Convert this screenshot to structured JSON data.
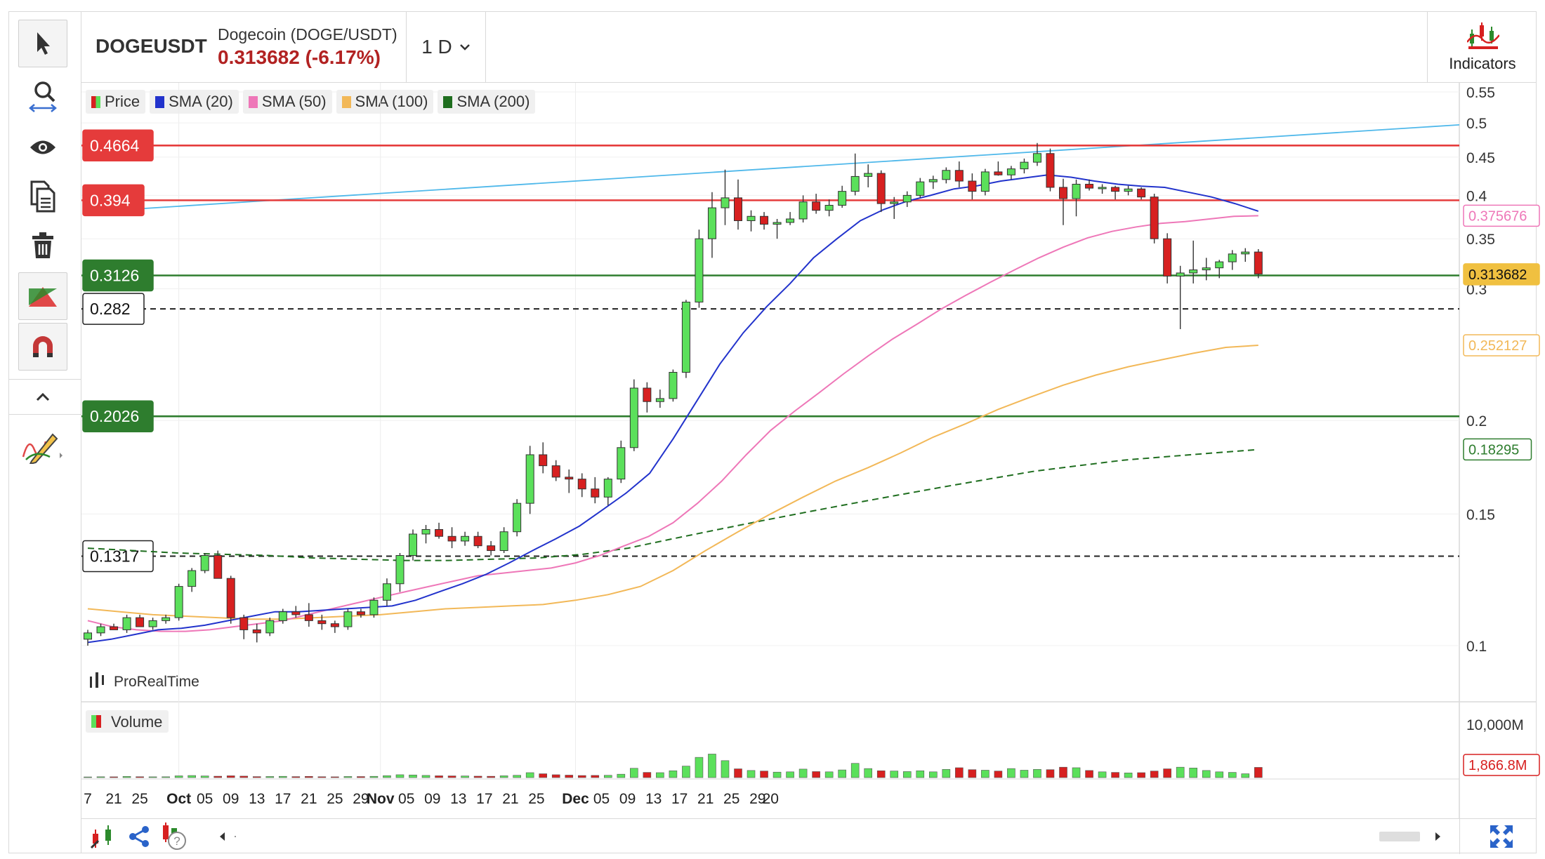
{
  "header": {
    "symbol": "DOGEUSDT",
    "instrument_name": "Dogecoin (DOGE/USDT)",
    "last_price": "0.313682 (-6.17%)",
    "timeframe": "1 D",
    "indicators_label": "Indicators"
  },
  "legend": [
    {
      "label": "Price",
      "color": "#2eaa2e"
    },
    {
      "label": "SMA (20)",
      "color": "#2233cc"
    },
    {
      "label": "SMA (50)",
      "color": "#ee77b8"
    },
    {
      "label": "SMA (100)",
      "color": "#f2b858"
    },
    {
      "label": "SMA (200)",
      "color": "#1f6e1f"
    }
  ],
  "volume_legend": "Volume",
  "watermark": "ProRealTime",
  "colors": {
    "up": "#5be05b",
    "down": "#d72020",
    "blue_trendline": "#4fb8ea"
  },
  "chart_data": {
    "type": "candlestick",
    "scale": "log",
    "price_axis_ticks": [
      "0.55",
      "0.5",
      "0.45",
      "0.4",
      "0.35",
      "0.3",
      "0.2",
      "0.15",
      "0.1"
    ],
    "volume_axis_ticks": [
      "10,000M"
    ],
    "x_tick_labels": [
      {
        "label": "7",
        "idx": 0
      },
      {
        "label": "21",
        "idx": 2
      },
      {
        "label": "25",
        "idx": 4
      },
      {
        "label": "Oct",
        "idx": 7,
        "bold": true
      },
      {
        "label": "05",
        "idx": 9
      },
      {
        "label": "09",
        "idx": 11
      },
      {
        "label": "13",
        "idx": 13
      },
      {
        "label": "17",
        "idx": 15
      },
      {
        "label": "21",
        "idx": 17
      },
      {
        "label": "25",
        "idx": 19
      },
      {
        "label": "29",
        "idx": 21
      },
      {
        "label": "Nov",
        "idx": 22.5,
        "bold": true
      },
      {
        "label": "05",
        "idx": 24.5
      },
      {
        "label": "09",
        "idx": 26.5
      },
      {
        "label": "13",
        "idx": 28.5
      },
      {
        "label": "17",
        "idx": 30.5
      },
      {
        "label": "21",
        "idx": 32.5
      },
      {
        "label": "25",
        "idx": 34.5
      },
      {
        "label": "Dec",
        "idx": 37.5,
        "bold": true
      },
      {
        "label": "05",
        "idx": 39.5
      },
      {
        "label": "09",
        "idx": 41.5
      },
      {
        "label": "13",
        "idx": 43.5
      },
      {
        "label": "17",
        "idx": 45.5
      },
      {
        "label": "21",
        "idx": 47.5
      },
      {
        "label": "25",
        "idx": 49.5
      },
      {
        "label": "29",
        "idx": 51.5
      },
      {
        "label": "20",
        "idx": 52.5
      }
    ],
    "candles": [
      [
        0.102,
        0.105,
        0.1,
        0.104
      ],
      [
        0.104,
        0.107,
        0.103,
        0.106
      ],
      [
        0.106,
        0.107,
        0.105,
        0.105
      ],
      [
        0.105,
        0.11,
        0.104,
        0.109
      ],
      [
        0.109,
        0.11,
        0.106,
        0.106
      ],
      [
        0.106,
        0.109,
        0.105,
        0.108
      ],
      [
        0.108,
        0.11,
        0.107,
        0.109
      ],
      [
        0.109,
        0.121,
        0.108,
        0.12
      ],
      [
        0.12,
        0.127,
        0.118,
        0.126
      ],
      [
        0.126,
        0.133,
        0.125,
        0.132
      ],
      [
        0.132,
        0.134,
        0.123,
        0.123
      ],
      [
        0.123,
        0.124,
        0.107,
        0.109
      ],
      [
        0.109,
        0.11,
        0.102,
        0.105
      ],
      [
        0.105,
        0.107,
        0.101,
        0.104
      ],
      [
        0.104,
        0.109,
        0.103,
        0.108
      ],
      [
        0.108,
        0.112,
        0.107,
        0.111
      ],
      [
        0.111,
        0.113,
        0.109,
        0.11
      ],
      [
        0.11,
        0.114,
        0.106,
        0.108
      ],
      [
        0.108,
        0.11,
        0.105,
        0.107
      ],
      [
        0.107,
        0.108,
        0.104,
        0.106
      ],
      [
        0.106,
        0.112,
        0.105,
        0.111
      ],
      [
        0.111,
        0.112,
        0.109,
        0.11
      ],
      [
        0.11,
        0.116,
        0.109,
        0.115
      ],
      [
        0.115,
        0.123,
        0.113,
        0.121
      ],
      [
        0.121,
        0.133,
        0.118,
        0.132
      ],
      [
        0.132,
        0.143,
        0.13,
        0.141
      ],
      [
        0.141,
        0.145,
        0.137,
        0.143
      ],
      [
        0.143,
        0.146,
        0.139,
        0.14
      ],
      [
        0.14,
        0.144,
        0.135,
        0.138
      ],
      [
        0.138,
        0.142,
        0.136,
        0.14
      ],
      [
        0.14,
        0.142,
        0.135,
        0.136
      ],
      [
        0.136,
        0.138,
        0.132,
        0.134
      ],
      [
        0.134,
        0.144,
        0.133,
        0.142
      ],
      [
        0.142,
        0.157,
        0.14,
        0.155
      ],
      [
        0.155,
        0.185,
        0.15,
        0.18
      ],
      [
        0.18,
        0.187,
        0.17,
        0.174
      ],
      [
        0.174,
        0.177,
        0.166,
        0.168
      ],
      [
        0.168,
        0.172,
        0.16,
        0.167
      ],
      [
        0.167,
        0.17,
        0.158,
        0.162
      ],
      [
        0.162,
        0.168,
        0.155,
        0.158
      ],
      [
        0.158,
        0.168,
        0.154,
        0.167
      ],
      [
        0.167,
        0.188,
        0.165,
        0.184
      ],
      [
        0.184,
        0.227,
        0.182,
        0.221
      ],
      [
        0.221,
        0.225,
        0.205,
        0.212
      ],
      [
        0.212,
        0.22,
        0.208,
        0.214
      ],
      [
        0.214,
        0.234,
        0.212,
        0.232
      ],
      [
        0.232,
        0.29,
        0.228,
        0.288
      ],
      [
        0.288,
        0.36,
        0.283,
        0.35
      ],
      [
        0.35,
        0.404,
        0.33,
        0.385
      ],
      [
        0.385,
        0.433,
        0.365,
        0.397
      ],
      [
        0.397,
        0.42,
        0.36,
        0.37
      ],
      [
        0.37,
        0.382,
        0.358,
        0.375
      ],
      [
        0.375,
        0.38,
        0.36,
        0.366
      ],
      [
        0.366,
        0.372,
        0.35,
        0.368
      ],
      [
        0.368,
        0.38,
        0.365,
        0.372
      ],
      [
        0.372,
        0.4,
        0.368,
        0.392
      ],
      [
        0.392,
        0.402,
        0.378,
        0.382
      ],
      [
        0.382,
        0.395,
        0.375,
        0.388
      ],
      [
        0.388,
        0.412,
        0.385,
        0.405
      ],
      [
        0.405,
        0.455,
        0.4,
        0.424
      ],
      [
        0.424,
        0.44,
        0.41,
        0.428
      ],
      [
        0.428,
        0.432,
        0.38,
        0.39
      ],
      [
        0.39,
        0.398,
        0.372,
        0.392
      ],
      [
        0.392,
        0.405,
        0.386,
        0.4
      ],
      [
        0.4,
        0.422,
        0.397,
        0.417
      ],
      [
        0.417,
        0.425,
        0.408,
        0.42
      ],
      [
        0.42,
        0.436,
        0.415,
        0.432
      ],
      [
        0.432,
        0.444,
        0.41,
        0.418
      ],
      [
        0.418,
        0.428,
        0.395,
        0.405
      ],
      [
        0.405,
        0.434,
        0.4,
        0.43
      ],
      [
        0.43,
        0.444,
        0.425,
        0.426
      ],
      [
        0.426,
        0.438,
        0.42,
        0.434
      ],
      [
        0.434,
        0.448,
        0.428,
        0.443
      ],
      [
        0.443,
        0.47,
        0.438,
        0.455
      ],
      [
        0.455,
        0.462,
        0.405,
        0.41
      ],
      [
        0.41,
        0.421,
        0.365,
        0.396
      ],
      [
        0.396,
        0.42,
        0.375,
        0.414
      ],
      [
        0.414,
        0.42,
        0.406,
        0.409
      ],
      [
        0.409,
        0.414,
        0.402,
        0.41
      ],
      [
        0.41,
        0.412,
        0.395,
        0.405
      ],
      [
        0.405,
        0.412,
        0.4,
        0.408
      ],
      [
        0.408,
        0.41,
        0.395,
        0.398
      ],
      [
        0.398,
        0.402,
        0.345,
        0.35
      ],
      [
        0.35,
        0.356,
        0.305,
        0.312
      ],
      [
        0.312,
        0.322,
        0.265,
        0.315
      ],
      [
        0.315,
        0.348,
        0.305,
        0.318
      ],
      [
        0.318,
        0.33,
        0.308,
        0.32
      ],
      [
        0.32,
        0.328,
        0.31,
        0.326
      ],
      [
        0.326,
        0.338,
        0.318,
        0.334
      ],
      [
        0.334,
        0.34,
        0.326,
        0.336
      ],
      [
        0.336,
        0.339,
        0.31,
        0.314
      ]
    ],
    "candle_dates_note": "",
    "volumes": [
      120,
      150,
      140,
      210,
      160,
      140,
      150,
      320,
      380,
      300,
      250,
      330,
      270,
      180,
      200,
      230,
      180,
      220,
      160,
      140,
      200,
      190,
      230,
      350,
      520,
      480,
      400,
      330,
      310,
      300,
      260,
      240,
      330,
      420,
      900,
      700,
      520,
      450,
      380,
      400,
      420,
      620,
      1700,
      950,
      900,
      1250,
      2100,
      3700,
      4300,
      3100,
      1600,
      1300,
      1200,
      1000,
      1050,
      1550,
      1100,
      1050,
      1400,
      2600,
      1650,
      1250,
      1200,
      1100,
      1250,
      1050,
      1500,
      1800,
      1450,
      1350,
      1200,
      1650,
      1350,
      1500,
      1450,
      1900,
      1800,
      1300,
      1050,
      950,
      850,
      900,
      1200,
      1600,
      1900,
      1750,
      1300,
      1050,
      950,
      700,
      1866.8
    ],
    "sma20": [
      0.101,
      0.102,
      0.1035,
      0.105,
      0.1055,
      0.1065,
      0.108,
      0.1095,
      0.111,
      0.111,
      0.1115,
      0.112,
      0.1125,
      0.113,
      0.115,
      0.118,
      0.121,
      0.1245,
      0.129,
      0.134,
      0.139,
      0.1445,
      0.152,
      0.16,
      0.17,
      0.189,
      0.212,
      0.238,
      0.262,
      0.284,
      0.305,
      0.33,
      0.35,
      0.37,
      0.383,
      0.393,
      0.4,
      0.408,
      0.412,
      0.418,
      0.422,
      0.426,
      0.423,
      0.418,
      0.414,
      0.4115,
      0.41,
      0.404,
      0.398,
      0.39,
      0.381
    ],
    "sma50": [
      0.108,
      0.106,
      0.105,
      0.1045,
      0.1045,
      0.105,
      0.106,
      0.107,
      0.108,
      0.11,
      0.112,
      0.114,
      0.116,
      0.118,
      0.12,
      0.122,
      0.124,
      0.125,
      0.126,
      0.127,
      0.129,
      0.132,
      0.136,
      0.14,
      0.146,
      0.155,
      0.166,
      0.18,
      0.194,
      0.206,
      0.218,
      0.231,
      0.244,
      0.257,
      0.269,
      0.282,
      0.294,
      0.306,
      0.318,
      0.33,
      0.341,
      0.351,
      0.358,
      0.363,
      0.367,
      0.369,
      0.372,
      0.375,
      0.3757
    ],
    "sma100": [
      0.112,
      0.111,
      0.11,
      0.1095,
      0.109,
      0.1085,
      0.1085,
      0.109,
      0.1095,
      0.11,
      0.111,
      0.112,
      0.1125,
      0.113,
      0.1135,
      0.115,
      0.117,
      0.12,
      0.126,
      0.134,
      0.142,
      0.15,
      0.158,
      0.166,
      0.173,
      0.181,
      0.19,
      0.198,
      0.207,
      0.215,
      0.223,
      0.23,
      0.236,
      0.241,
      0.246,
      0.2505,
      0.2521
    ],
    "sma200": [
      0.135,
      0.134,
      0.133,
      0.1325,
      0.132,
      0.131,
      0.1305,
      0.13,
      0.13,
      0.1305,
      0.131,
      0.1325,
      0.135,
      0.139,
      0.143,
      0.147,
      0.151,
      0.155,
      0.159,
      0.163,
      0.167,
      0.171,
      0.174,
      0.177,
      0.179,
      0.181,
      0.1829
    ],
    "horizontal_levels": [
      {
        "label": "0.4664",
        "value": 0.4664,
        "color": "#e53b3b",
        "style": "solid"
      },
      {
        "label": "0.394",
        "value": 0.394,
        "color": "#e53b3b",
        "style": "solid"
      },
      {
        "label": "0.3126",
        "value": 0.3126,
        "color": "#2e7d2e",
        "style": "solid"
      },
      {
        "label": "0.282",
        "value": 0.282,
        "color": "#222222",
        "style": "dashed"
      },
      {
        "label": "0.2026",
        "value": 0.2026,
        "color": "#2e7d2e",
        "style": "solid"
      },
      {
        "label": "0.1317",
        "value": 0.1317,
        "color": "#222222",
        "style": "dashed"
      }
    ],
    "trendline": {
      "from": [
        0,
        0.38
      ],
      "to": [
        55,
        0.497
      ]
    },
    "right_badges": [
      {
        "label": "0.375676",
        "value": 0.375676,
        "color": "#ee77b8",
        "style": "outline"
      },
      {
        "label": "0.313682",
        "value": 0.313682,
        "color": "#f0c040",
        "style": "filled"
      },
      {
        "label": "0.252127",
        "value": 0.252127,
        "color": "#f2b858",
        "style": "outline"
      },
      {
        "label": "0.18295",
        "value": 0.18295,
        "color": "#2e7d2e",
        "style": "outline"
      },
      {
        "label": "1,866.8M",
        "value": 1866.8,
        "color": "#d72020",
        "style": "outline",
        "pane": "volume"
      }
    ]
  }
}
